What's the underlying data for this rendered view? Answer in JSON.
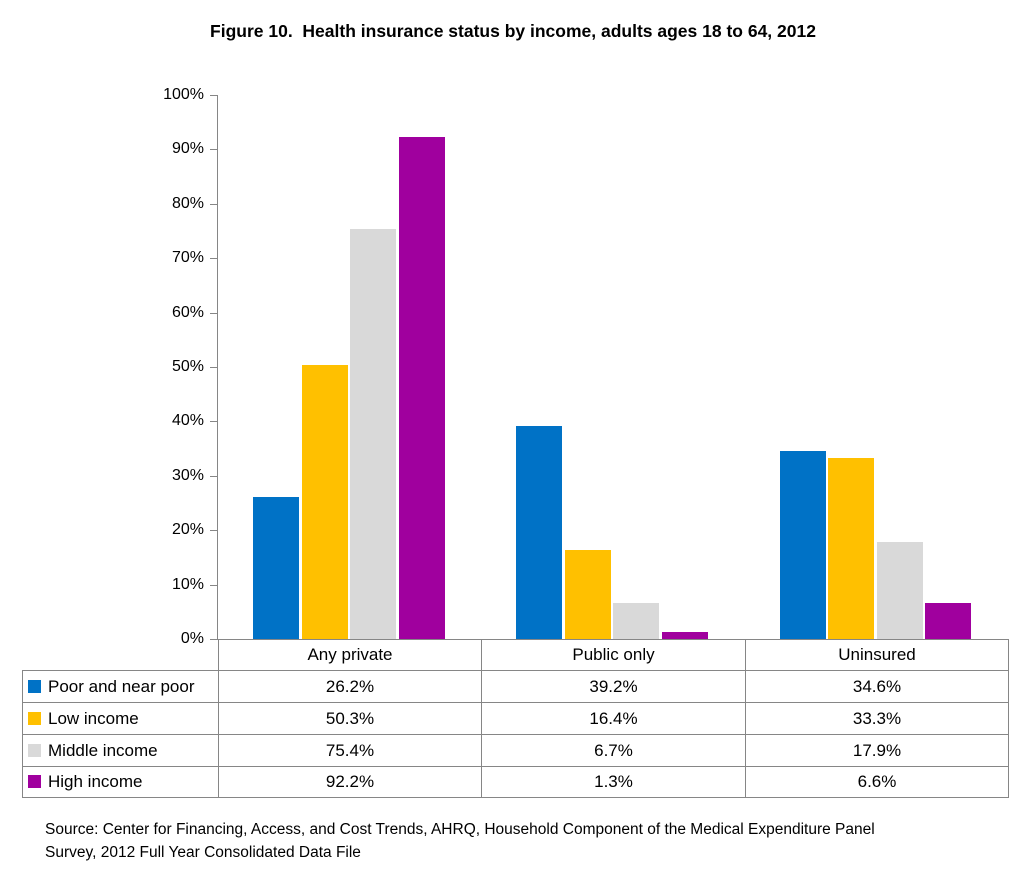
{
  "title": "Figure 10.  Health insurance status by income, adults ages 18 to 64, 2012",
  "source": {
    "line1": "Source: Center for Financing, Access, and Cost Trends, AHRQ, Household Component of the Medical Expenditure Panel",
    "line2": "Survey, 2012 Full Year Consolidated Data File"
  },
  "colors": {
    "axis_and_borders": "#868686",
    "poor_and_near_poor": "#0072C6",
    "low_income": "#FFC000",
    "middle_income": "#D9D9D9",
    "high_income": "#A0009E"
  },
  "chart_data": {
    "type": "bar",
    "title": "Figure 10.  Health insurance status by income, adults ages 18 to 64, 2012",
    "categories": [
      "Any private",
      "Public only",
      "Uninsured"
    ],
    "series": [
      {
        "name": "Poor and near poor",
        "color": "#0072C6",
        "values": [
          26.2,
          39.2,
          34.6
        ],
        "display_values": [
          "26.2%",
          "39.2%",
          "34.6%"
        ]
      },
      {
        "name": "Low income",
        "color": "#FFC000",
        "values": [
          50.3,
          16.4,
          33.3
        ],
        "display_values": [
          "50.3%",
          "16.4%",
          "33.3%"
        ]
      },
      {
        "name": "Middle income",
        "color": "#D9D9D9",
        "values": [
          75.4,
          6.7,
          17.9
        ],
        "display_values": [
          "75.4%",
          "6.7%",
          "17.9%"
        ]
      },
      {
        "name": "High income",
        "color": "#A0009E",
        "values": [
          92.2,
          1.3,
          6.6
        ],
        "display_values": [
          "92.2%",
          "1.3%",
          "6.6%"
        ]
      }
    ],
    "xlabel": "",
    "ylabel": "",
    "ylim": [
      0,
      100
    ],
    "ytick_step": 10,
    "ytick_labels": [
      "0%",
      "10%",
      "20%",
      "30%",
      "40%",
      "50%",
      "60%",
      "70%",
      "80%",
      "90%",
      "100%"
    ],
    "grid": false,
    "legend_position": "table-left-column",
    "data_labels": "table-below-chart"
  }
}
